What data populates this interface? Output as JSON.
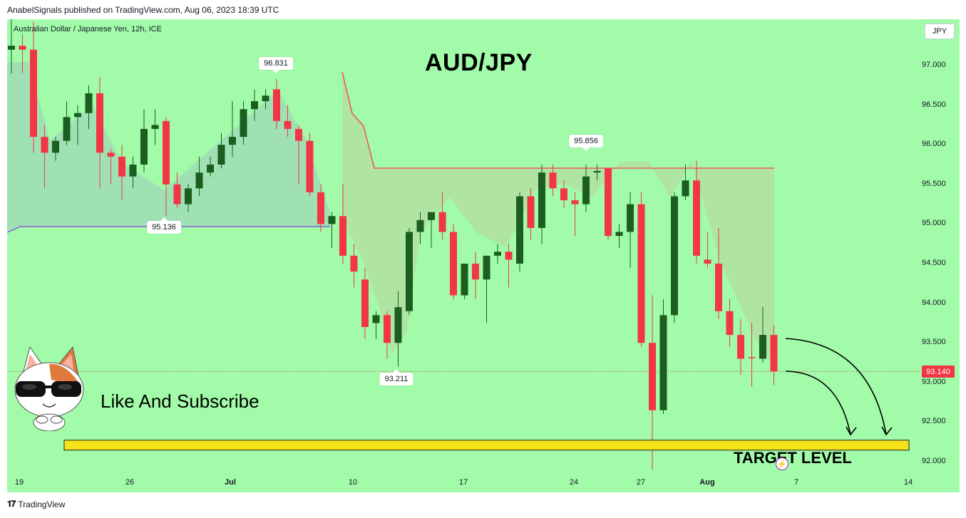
{
  "header": {
    "published": "AnabelSignals published on TradingView.com, Aug 06, 2023 18:39 UTC"
  },
  "chart": {
    "symbol": "Australian Dollar / Japanese Yen, 12h, ICE",
    "currency_button": "JPY",
    "big_title": "AUD/JPY",
    "subscribe_text": "Like And Subscribe",
    "target_label": "TARGET LEVEL",
    "last_price": "93.140",
    "markers": {
      "high_jul": "96.831",
      "low_jun": "95.136",
      "low_jul": "93.211",
      "high_jul2": "95.856"
    },
    "colors": {
      "up": "#1b5e20",
      "down": "#f23645",
      "background": "#a1fba9",
      "target_band": "#f5e31a"
    }
  },
  "chart_data": {
    "type": "candlestick",
    "title": "AUD/JPY",
    "y_ticks": [
      "97.000",
      "96.500",
      "96.000",
      "95.500",
      "95.000",
      "94.500",
      "94.000",
      "93.500",
      "93.000",
      "92.500",
      "92.000"
    ],
    "x_ticks": [
      "19",
      "26",
      "Jul",
      "10",
      "17",
      "24",
      "27",
      "Aug",
      "7",
      "14"
    ],
    "ylim": [
      91.9,
      97.55
    ],
    "target_level": 92.2,
    "candles": [
      [
        97.2,
        97.7,
        96.9,
        97.25
      ],
      [
        97.25,
        97.4,
        96.9,
        97.2
      ],
      [
        97.2,
        97.55,
        95.9,
        96.1
      ],
      [
        96.1,
        96.25,
        95.45,
        95.9
      ],
      [
        95.9,
        96.1,
        95.8,
        96.05
      ],
      [
        96.05,
        96.55,
        96.0,
        96.35
      ],
      [
        96.35,
        96.5,
        96.0,
        96.4
      ],
      [
        96.4,
        96.75,
        96.2,
        96.65
      ],
      [
        96.65,
        96.85,
        95.45,
        95.9
      ],
      [
        95.9,
        95.95,
        95.5,
        95.85
      ],
      [
        95.85,
        96.0,
        95.3,
        95.6
      ],
      [
        95.6,
        95.85,
        95.45,
        95.75
      ],
      [
        95.75,
        96.45,
        95.65,
        96.2
      ],
      [
        96.2,
        96.45,
        96.0,
        96.25
      ],
      [
        96.3,
        96.35,
        95.1,
        95.5
      ],
      [
        95.5,
        95.65,
        95.2,
        95.25
      ],
      [
        95.25,
        95.5,
        95.15,
        95.45
      ],
      [
        95.45,
        95.85,
        95.35,
        95.65
      ],
      [
        95.65,
        95.85,
        95.6,
        95.75
      ],
      [
        95.75,
        96.15,
        95.7,
        96.0
      ],
      [
        96.0,
        96.55,
        95.85,
        96.1
      ],
      [
        96.1,
        96.55,
        96.0,
        96.45
      ],
      [
        96.45,
        96.7,
        96.3,
        96.55
      ],
      [
        96.55,
        96.7,
        96.45,
        96.62
      ],
      [
        96.7,
        96.83,
        96.2,
        96.3
      ],
      [
        96.3,
        96.5,
        96.1,
        96.2
      ],
      [
        96.2,
        96.25,
        95.5,
        96.05
      ],
      [
        96.05,
        96.15,
        95.35,
        95.4
      ],
      [
        95.4,
        95.5,
        94.9,
        95.0
      ],
      [
        95.0,
        95.15,
        94.7,
        95.1
      ],
      [
        95.1,
        95.5,
        94.5,
        94.6
      ],
      [
        94.6,
        94.75,
        94.2,
        94.4
      ],
      [
        94.3,
        94.45,
        93.55,
        93.7
      ],
      [
        93.75,
        93.9,
        93.55,
        93.85
      ],
      [
        93.85,
        93.9,
        93.3,
        93.5
      ],
      [
        93.5,
        94.15,
        93.2,
        93.95
      ],
      [
        93.9,
        94.95,
        93.85,
        94.9
      ],
      [
        94.9,
        95.15,
        94.75,
        95.05
      ],
      [
        95.05,
        95.15,
        94.7,
        95.15
      ],
      [
        95.15,
        95.4,
        94.8,
        94.9
      ],
      [
        94.9,
        95.0,
        94.05,
        94.1
      ],
      [
        94.1,
        94.5,
        94.05,
        94.5
      ],
      [
        94.5,
        94.65,
        94.05,
        94.3
      ],
      [
        94.3,
        94.6,
        93.75,
        94.6
      ],
      [
        94.6,
        94.75,
        94.5,
        94.65
      ],
      [
        94.65,
        94.75,
        94.2,
        94.55
      ],
      [
        94.5,
        95.4,
        94.4,
        95.35
      ],
      [
        95.35,
        95.45,
        94.8,
        94.95
      ],
      [
        94.95,
        95.75,
        94.75,
        95.65
      ],
      [
        95.65,
        95.75,
        95.35,
        95.45
      ],
      [
        95.45,
        95.55,
        95.2,
        95.3
      ],
      [
        95.3,
        95.4,
        94.85,
        95.25
      ],
      [
        95.25,
        95.75,
        95.15,
        95.6
      ],
      [
        95.65,
        95.75,
        95.55,
        95.67
      ],
      [
        95.7,
        95.7,
        94.8,
        94.85
      ],
      [
        94.85,
        95.0,
        94.7,
        94.9
      ],
      [
        94.9,
        95.4,
        94.45,
        95.25
      ],
      [
        95.25,
        95.4,
        93.45,
        93.5
      ],
      [
        93.5,
        94.1,
        91.9,
        92.65
      ],
      [
        92.65,
        94.05,
        92.6,
        93.85
      ],
      [
        93.85,
        95.4,
        93.75,
        95.35
      ],
      [
        95.35,
        95.75,
        95.3,
        95.55
      ],
      [
        95.55,
        95.8,
        94.5,
        94.6
      ],
      [
        94.55,
        94.9,
        94.45,
        94.5
      ],
      [
        94.5,
        94.95,
        93.8,
        93.9
      ],
      [
        93.9,
        94.05,
        93.45,
        93.6
      ],
      [
        93.6,
        93.8,
        93.1,
        93.3
      ],
      [
        93.32,
        93.75,
        92.95,
        93.31
      ],
      [
        93.3,
        93.95,
        93.25,
        93.6
      ],
      [
        93.6,
        93.72,
        92.97,
        93.14
      ]
    ],
    "overlays": {
      "resistance_line": 95.7,
      "support_line_first_segment": 95.0
    }
  }
}
